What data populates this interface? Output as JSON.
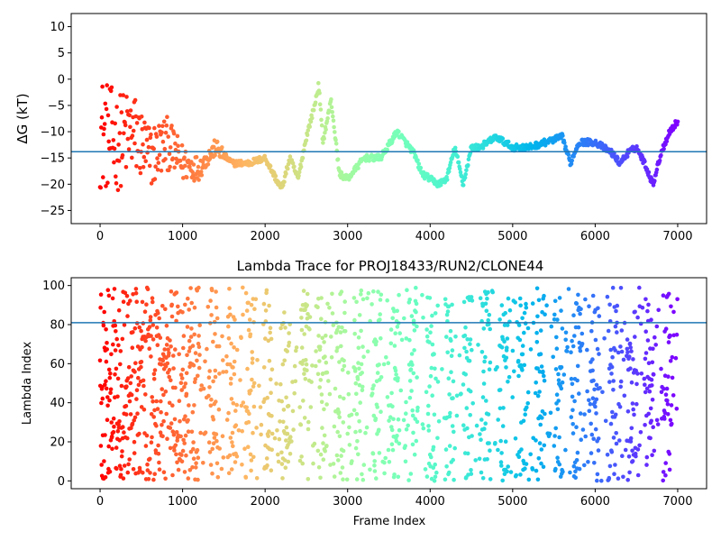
{
  "chart_data": [
    {
      "type": "scatter",
      "title": "",
      "xlabel": "",
      "ylabel": "ΔG (kT)",
      "xlim": [
        -350,
        7350
      ],
      "ylim": [
        -27.5,
        12.5
      ],
      "xticks": [
        0,
        1000,
        2000,
        3000,
        4000,
        5000,
        6000,
        7000
      ],
      "yticks": [
        -25,
        -20,
        -15,
        -10,
        -5,
        0,
        5,
        10
      ],
      "colormap": "rainbow",
      "hline": -13.8,
      "hline_color": "#1f77b4",
      "series": [
        {
          "x": [
            0,
            200,
            400,
            600,
            800,
            1000,
            1200,
            1400,
            1600,
            1800,
            2000,
            2200,
            2300,
            2400,
            2500,
            2600,
            2650,
            2700,
            2800,
            2900,
            3000,
            3200,
            3400,
            3600,
            3800,
            3900,
            4000,
            4100,
            4200,
            4300,
            4400,
            4500,
            4600,
            4800,
            5000,
            5200,
            5400,
            5600,
            5700,
            5800,
            6000,
            6200,
            6300,
            6400,
            6500,
            6600,
            6700,
            6800,
            6900,
            7000
          ],
          "y": [
            -10,
            -12,
            -10,
            -15,
            -12,
            -16,
            -17,
            -13,
            -16,
            -16,
            -15,
            -21,
            -15,
            -19,
            -11,
            -5,
            -1,
            -12,
            -4,
            -18,
            -19,
            -15,
            -15,
            -10,
            -14,
            -18,
            -19,
            -20,
            -19,
            -13,
            -20,
            -13,
            -13,
            -11,
            -13,
            -13,
            -12,
            -11,
            -16,
            -12,
            -12,
            -14,
            -16,
            -14,
            -13,
            -16,
            -20,
            -14,
            -10,
            -8
          ]
        }
      ]
    },
    {
      "type": "scatter",
      "title": "Lambda Trace for PROJ18433/RUN2/CLONE44",
      "xlabel": "Frame Index",
      "ylabel": "Lambda Index",
      "xlim": [
        -350,
        7350
      ],
      "ylim": [
        -4,
        104
      ],
      "xticks": [
        0,
        1000,
        2000,
        3000,
        4000,
        5000,
        6000,
        7000
      ],
      "yticks": [
        0,
        20,
        40,
        60,
        80,
        100
      ],
      "colormap": "rainbow",
      "hline": 81,
      "hline_color": "#1f77b4",
      "series": [
        {
          "x_range": [
            0,
            7000
          ],
          "y_range": [
            0,
            99
          ]
        }
      ]
    }
  ]
}
